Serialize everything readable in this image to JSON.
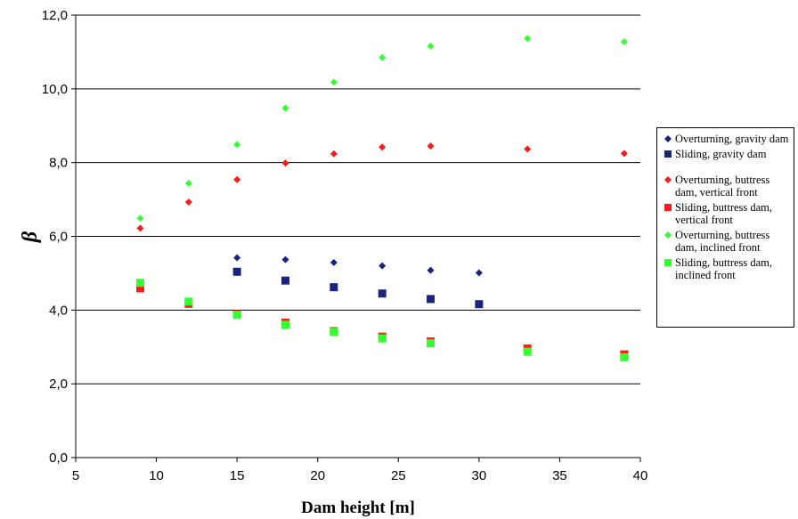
{
  "chart_data": {
    "type": "scatter",
    "xlabel": "Dam height [m]",
    "ylabel": "β",
    "xlim": [
      5,
      40
    ],
    "ylim": [
      0,
      12
    ],
    "xticks": [
      "5",
      "10",
      "15",
      "20",
      "25",
      "30",
      "35",
      "40"
    ],
    "yticks": [
      "0,0",
      "2,0",
      "4,0",
      "6,0",
      "8,0",
      "10,0",
      "12,0"
    ],
    "grid": "horizontal",
    "legend_position": "right",
    "series": [
      {
        "name": "Overturning, gravity dam",
        "marker": "diamond",
        "color": "#1a237e",
        "points": [
          [
            15,
            5.42
          ],
          [
            18,
            5.37
          ],
          [
            21,
            5.29
          ],
          [
            24,
            5.2
          ],
          [
            27,
            5.08
          ],
          [
            30,
            5.01
          ]
        ]
      },
      {
        "name": "Sliding, gravity dam",
        "marker": "square",
        "color": "#1a237e",
        "points": [
          [
            15,
            5.04
          ],
          [
            18,
            4.8
          ],
          [
            21,
            4.62
          ],
          [
            24,
            4.45
          ],
          [
            27,
            4.3
          ],
          [
            30,
            4.16
          ]
        ]
      },
      {
        "name": "Overturning, buttress dam, vertical front",
        "marker": "diamond",
        "color": "#ff1a1a",
        "points": [
          [
            9,
            6.22
          ],
          [
            12,
            6.93
          ],
          [
            15,
            7.54
          ],
          [
            18,
            7.99
          ],
          [
            21,
            8.24
          ],
          [
            24,
            8.42
          ],
          [
            27,
            8.45
          ],
          [
            33,
            8.37
          ],
          [
            39,
            8.25
          ]
        ]
      },
      {
        "name": "Sliding, buttress dam, vertical front",
        "marker": "square",
        "color": "#ff1a1a",
        "points": [
          [
            9,
            4.59
          ],
          [
            12,
            4.17
          ],
          [
            15,
            3.89
          ],
          [
            18,
            3.66
          ],
          [
            21,
            3.43
          ],
          [
            24,
            3.28
          ],
          [
            27,
            3.15
          ],
          [
            33,
            2.96
          ],
          [
            39,
            2.8
          ]
        ]
      },
      {
        "name": "Overturning, buttress dam, inclined front",
        "marker": "diamond",
        "color": "#33ff33",
        "points": [
          [
            9,
            6.49
          ],
          [
            12,
            7.44
          ],
          [
            15,
            8.49
          ],
          [
            18,
            9.48
          ],
          [
            21,
            10.18
          ],
          [
            24,
            10.85
          ],
          [
            27,
            11.16
          ],
          [
            33,
            11.37
          ],
          [
            39,
            11.28
          ]
        ]
      },
      {
        "name": "Sliding, buttress dam, inclined front",
        "marker": "square",
        "color": "#33ff33",
        "points": [
          [
            9,
            4.74
          ],
          [
            12,
            4.23
          ],
          [
            15,
            3.87
          ],
          [
            18,
            3.6
          ],
          [
            21,
            3.41
          ],
          [
            24,
            3.23
          ],
          [
            27,
            3.1
          ],
          [
            33,
            2.87
          ],
          [
            39,
            2.72
          ]
        ]
      }
    ]
  },
  "legend": {
    "items": [
      "Overturning, gravity dam",
      "Sliding, gravity dam",
      "Overturning, buttress dam, vertical front",
      "Sliding, buttress dam, vertical front",
      "Overturning, buttress dam, inclined front",
      "Sliding, buttress dam, inclined front"
    ]
  }
}
